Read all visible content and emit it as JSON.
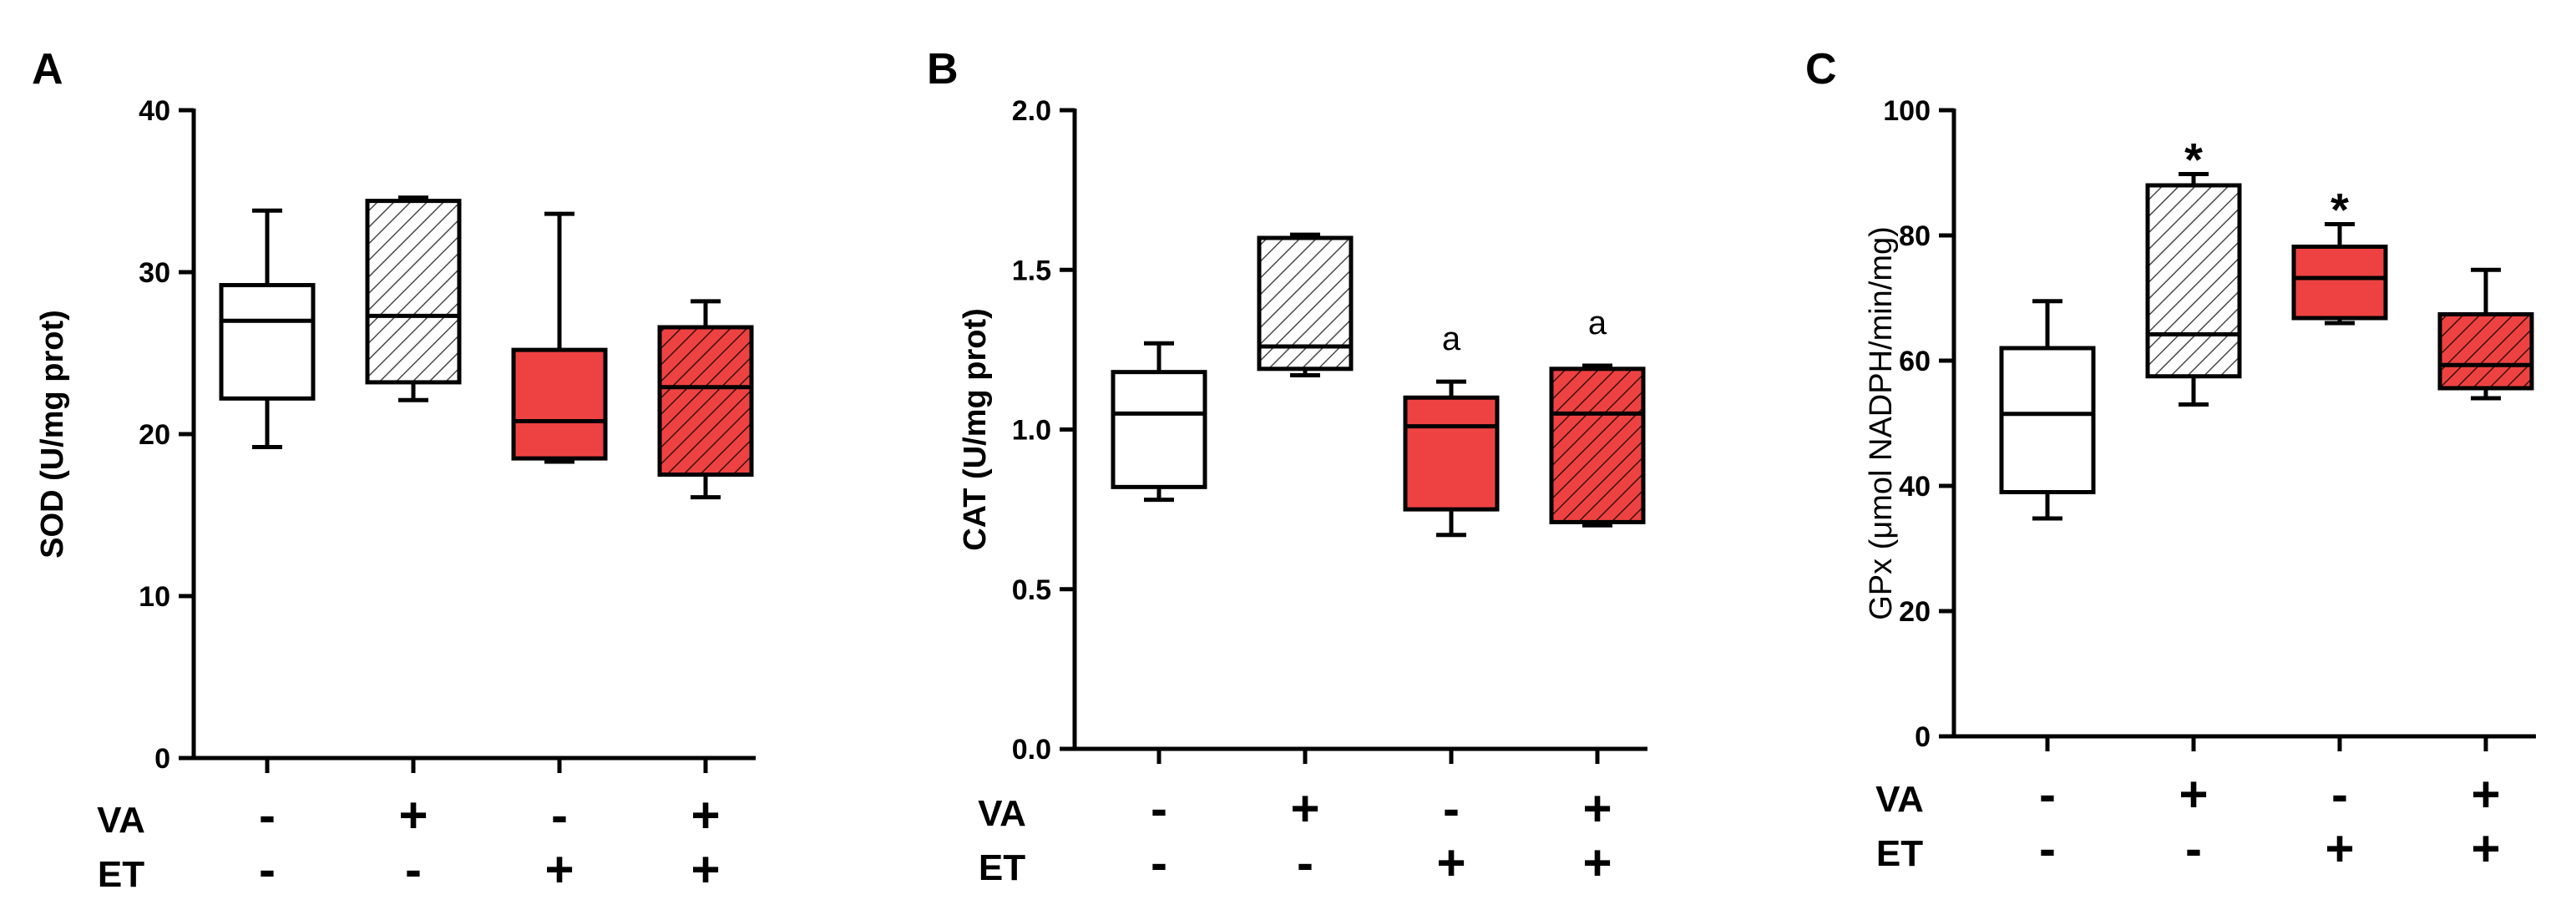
{
  "colors": {
    "white_fill": "#ffffff",
    "red_fill": "#ee4242",
    "stroke": "#000000",
    "hatch_light": "#5a5a5a"
  },
  "chart_data": [
    {
      "type": "box",
      "panel": "A",
      "ylabel": "SOD (U/mg prot)",
      "ylim": [
        0,
        40
      ],
      "yticks": [
        "0",
        "10",
        "20",
        "30",
        "40"
      ],
      "groups": [
        {
          "VA": "-",
          "ET": "-",
          "fill": "white",
          "hatch": false,
          "min": 19.2,
          "q1": 22.2,
          "median": 27.0,
          "q3": 29.2,
          "max": 33.8,
          "annotation": ""
        },
        {
          "VA": "+",
          "ET": "-",
          "fill": "white",
          "hatch": true,
          "min": 22.1,
          "q1": 23.2,
          "median": 27.3,
          "q3": 34.4,
          "max": 34.6,
          "annotation": ""
        },
        {
          "VA": "-",
          "ET": "+",
          "fill": "red",
          "hatch": false,
          "min": 18.3,
          "q1": 18.5,
          "median": 20.8,
          "q3": 25.2,
          "max": 33.6,
          "annotation": ""
        },
        {
          "VA": "+",
          "ET": "+",
          "fill": "red",
          "hatch": true,
          "min": 16.1,
          "q1": 17.5,
          "median": 22.9,
          "q3": 26.6,
          "max": 28.2,
          "annotation": ""
        }
      ]
    },
    {
      "type": "box",
      "panel": "B",
      "ylabel": "CAT (U/mg prot)",
      "ylim": [
        0,
        2.0
      ],
      "yticks": [
        "0.0",
        "0.5",
        "1.0",
        "1.5",
        "2.0"
      ],
      "groups": [
        {
          "VA": "-",
          "ET": "-",
          "fill": "white",
          "hatch": false,
          "min": 0.78,
          "q1": 0.82,
          "median": 1.05,
          "q3": 1.18,
          "max": 1.27,
          "annotation": ""
        },
        {
          "VA": "+",
          "ET": "-",
          "fill": "white",
          "hatch": true,
          "min": 1.17,
          "q1": 1.19,
          "median": 1.26,
          "q3": 1.6,
          "max": 1.61,
          "annotation": ""
        },
        {
          "VA": "-",
          "ET": "+",
          "fill": "red",
          "hatch": false,
          "min": 0.67,
          "q1": 0.75,
          "median": 1.01,
          "q3": 1.1,
          "max": 1.15,
          "annotation": "a"
        },
        {
          "VA": "+",
          "ET": "+",
          "fill": "red",
          "hatch": true,
          "min": 0.7,
          "q1": 0.71,
          "median": 1.05,
          "q3": 1.19,
          "max": 1.2,
          "annotation": "a"
        }
      ]
    },
    {
      "type": "box",
      "panel": "C",
      "ylabel": "GPx (μmol NADPH/min/mg)",
      "ylim": [
        0,
        100
      ],
      "yticks": [
        "0",
        "20",
        "40",
        "60",
        "80",
        "100"
      ],
      "groups": [
        {
          "VA": "-",
          "ET": "-",
          "fill": "white",
          "hatch": false,
          "min": 34.8,
          "q1": 39.0,
          "median": 51.5,
          "q3": 62.0,
          "max": 69.5,
          "annotation": ""
        },
        {
          "VA": "+",
          "ET": "-",
          "fill": "white",
          "hatch": true,
          "min": 53.0,
          "q1": 57.5,
          "median": 64.2,
          "q3": 88.0,
          "max": 89.8,
          "annotation": "*"
        },
        {
          "VA": "-",
          "ET": "+",
          "fill": "red",
          "hatch": false,
          "min": 66.0,
          "q1": 66.8,
          "median": 73.2,
          "q3": 78.2,
          "max": 81.8,
          "annotation": "*"
        },
        {
          "VA": "+",
          "ET": "+",
          "fill": "red",
          "hatch": true,
          "min": 54.0,
          "q1": 55.6,
          "median": 59.3,
          "q3": 67.4,
          "max": 74.5,
          "annotation": ""
        }
      ]
    }
  ],
  "row_labels": {
    "va": "VA",
    "et": "ET"
  }
}
